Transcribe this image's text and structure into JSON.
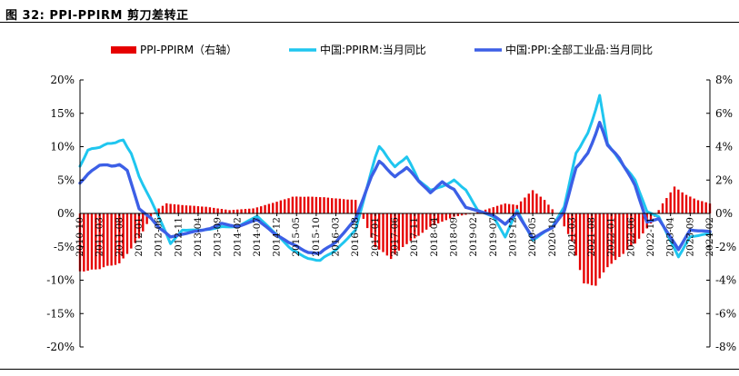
{
  "figure": {
    "title": "图 32: PPI-PPIRM 剪刀差转正"
  },
  "chart_data": {
    "type": "bar+line",
    "title": "图 32: PPI-PPIRM 剪刀差转正",
    "left_axis": {
      "ylim": [
        -20,
        20
      ],
      "ticks": [
        "20%",
        "15%",
        "10%",
        "5%",
        "0%",
        "-5%",
        "-10%",
        "-15%",
        "-20%"
      ]
    },
    "right_axis": {
      "ylim": [
        -8,
        8
      ],
      "ticks": [
        "8%",
        "6%",
        "4%",
        "2%",
        "0%",
        "-2%",
        "-4%",
        "-6%",
        "-8%"
      ]
    },
    "x_start": "2010-10",
    "x_end": "2024-02",
    "x_tick_labels": [
      "2010-10",
      "2011-03",
      "2011-08",
      "2012-01",
      "2012-06",
      "2012-11",
      "2013-04",
      "2013-09",
      "2014-02",
      "2014-07",
      "2014-12",
      "2015-05",
      "2015-10",
      "2016-03",
      "2016-08",
      "2017-01",
      "2017-06",
      "2017-11",
      "2018-04",
      "2018-09",
      "2019-02",
      "2019-07",
      "2019-12",
      "2020-05",
      "2020-10",
      "2021-03",
      "2021-08",
      "2022-01",
      "2022-06",
      "2022-11",
      "2023-04",
      "2023-09",
      "2024-02"
    ],
    "legend": {
      "position": "top"
    },
    "grid": false,
    "series": [
      {
        "name": "PPI-PPIRM（右轴）",
        "kind": "bar",
        "axis": "right",
        "color": "#e60000",
        "keyframes": [
          [
            "2010-10",
            -3.5
          ],
          [
            "2011-03",
            -3.3
          ],
          [
            "2011-08",
            -3.0
          ],
          [
            "2011-10",
            -2.4
          ],
          [
            "2012-01",
            -1.5
          ],
          [
            "2012-04",
            -0.2
          ],
          [
            "2012-06",
            0.3
          ],
          [
            "2012-08",
            0.6
          ],
          [
            "2012-12",
            0.5
          ],
          [
            "2013-06",
            0.4
          ],
          [
            "2013-12",
            0.2
          ],
          [
            "2014-06",
            0.3
          ],
          [
            "2014-12",
            0.7
          ],
          [
            "2015-04",
            1.0
          ],
          [
            "2015-10",
            1.0
          ],
          [
            "2016-03",
            0.9
          ],
          [
            "2016-08",
            0.8
          ],
          [
            "2017-01",
            -2.0
          ],
          [
            "2017-05",
            -2.7
          ],
          [
            "2017-08",
            -2.0
          ],
          [
            "2017-11",
            -1.5
          ],
          [
            "2018-03",
            -0.8
          ],
          [
            "2018-09",
            -0.2
          ],
          [
            "2019-02",
            0.0
          ],
          [
            "2019-06",
            0.3
          ],
          [
            "2019-10",
            0.6
          ],
          [
            "2020-01",
            0.5
          ],
          [
            "2020-05",
            1.4
          ],
          [
            "2020-08",
            0.8
          ],
          [
            "2020-12",
            -0.3
          ],
          [
            "2021-03",
            -1.7
          ],
          [
            "2021-06",
            -4.2
          ],
          [
            "2021-09",
            -4.3
          ],
          [
            "2021-12",
            -3.2
          ],
          [
            "2022-03",
            -2.6
          ],
          [
            "2022-07",
            -1.8
          ],
          [
            "2022-11",
            -0.6
          ],
          [
            "2023-02",
            0.6
          ],
          [
            "2023-05",
            1.6
          ],
          [
            "2023-08",
            1.1
          ],
          [
            "2023-11",
            0.8
          ],
          [
            "2024-02",
            0.6
          ]
        ]
      },
      {
        "name": "中国:PPIRM:当月同比",
        "kind": "line",
        "axis": "left",
        "color": "#1fc6ef",
        "keyframes": [
          [
            "2010-10",
            7.0
          ],
          [
            "2010-12",
            9.5
          ],
          [
            "2011-03",
            10.0
          ],
          [
            "2011-06",
            10.5
          ],
          [
            "2011-09",
            11.0
          ],
          [
            "2011-11",
            9.0
          ],
          [
            "2012-01",
            5.5
          ],
          [
            "2012-04",
            2.0
          ],
          [
            "2012-06",
            -0.5
          ],
          [
            "2012-09",
            -4.5
          ],
          [
            "2012-12",
            -2.5
          ],
          [
            "2013-04",
            -2.5
          ],
          [
            "2013-07",
            -2.4
          ],
          [
            "2013-10",
            -2.0
          ],
          [
            "2014-02",
            -2.0
          ],
          [
            "2014-07",
            -0.4
          ],
          [
            "2014-12",
            -3.2
          ],
          [
            "2015-04",
            -5.5
          ],
          [
            "2015-08",
            -6.8
          ],
          [
            "2015-11",
            -7.0
          ],
          [
            "2016-03",
            -5.5
          ],
          [
            "2016-08",
            -2.5
          ],
          [
            "2017-01",
            8.5
          ],
          [
            "2017-02",
            10.0
          ],
          [
            "2017-06",
            7.0
          ],
          [
            "2017-09",
            8.5
          ],
          [
            "2017-12",
            5.0
          ],
          [
            "2018-03",
            3.5
          ],
          [
            "2018-06",
            4.0
          ],
          [
            "2018-09",
            5.0
          ],
          [
            "2018-12",
            3.5
          ],
          [
            "2019-03",
            0.5
          ],
          [
            "2019-07",
            -0.5
          ],
          [
            "2019-10",
            -3.5
          ],
          [
            "2020-01",
            0.5
          ],
          [
            "2020-05",
            -4.0
          ],
          [
            "2020-10",
            -2.0
          ],
          [
            "2021-01",
            1.0
          ],
          [
            "2021-04",
            9.0
          ],
          [
            "2021-07",
            12.0
          ],
          [
            "2021-10",
            17.5
          ],
          [
            "2021-12",
            10.5
          ],
          [
            "2022-03",
            8.0
          ],
          [
            "2022-07",
            5.0
          ],
          [
            "2022-10",
            0.3
          ],
          [
            "2023-01",
            -0.5
          ],
          [
            "2023-06",
            -6.5
          ],
          [
            "2023-09",
            -3.5
          ],
          [
            "2024-02",
            -3.0
          ]
        ]
      },
      {
        "name": "中国:PPI:全部工业品:当月同比",
        "kind": "line",
        "axis": "left",
        "color": "#3c5fe6",
        "keyframes": [
          [
            "2010-10",
            4.5
          ],
          [
            "2010-12",
            5.9
          ],
          [
            "2011-03",
            7.3
          ],
          [
            "2011-06",
            7.1
          ],
          [
            "2011-08",
            7.3
          ],
          [
            "2011-10",
            6.5
          ],
          [
            "2012-01",
            0.7
          ],
          [
            "2012-04",
            -0.7
          ],
          [
            "2012-06",
            -2.1
          ],
          [
            "2012-09",
            -3.5
          ],
          [
            "2013-04",
            -2.6
          ],
          [
            "2013-07",
            -2.3
          ],
          [
            "2013-10",
            -1.5
          ],
          [
            "2014-02",
            -2.0
          ],
          [
            "2014-07",
            -0.9
          ],
          [
            "2014-12",
            -3.3
          ],
          [
            "2015-04",
            -4.6
          ],
          [
            "2015-08",
            -5.9
          ],
          [
            "2015-11",
            -5.9
          ],
          [
            "2016-03",
            -4.3
          ],
          [
            "2016-08",
            -0.8
          ],
          [
            "2016-12",
            5.5
          ],
          [
            "2017-02",
            7.8
          ],
          [
            "2017-06",
            5.5
          ],
          [
            "2017-09",
            6.9
          ],
          [
            "2017-12",
            4.9
          ],
          [
            "2018-03",
            3.1
          ],
          [
            "2018-06",
            4.7
          ],
          [
            "2018-09",
            3.6
          ],
          [
            "2018-12",
            0.9
          ],
          [
            "2019-03",
            0.4
          ],
          [
            "2019-07",
            -0.3
          ],
          [
            "2019-10",
            -1.6
          ],
          [
            "2020-01",
            0.1
          ],
          [
            "2020-05",
            -3.7
          ],
          [
            "2020-10",
            -2.1
          ],
          [
            "2021-01",
            0.3
          ],
          [
            "2021-04",
            6.8
          ],
          [
            "2021-07",
            9.0
          ],
          [
            "2021-10",
            13.5
          ],
          [
            "2021-12",
            10.3
          ],
          [
            "2022-03",
            8.3
          ],
          [
            "2022-07",
            4.2
          ],
          [
            "2022-10",
            -1.3
          ],
          [
            "2023-01",
            -0.8
          ],
          [
            "2023-06",
            -5.4
          ],
          [
            "2023-09",
            -2.5
          ],
          [
            "2024-02",
            -2.7
          ]
        ]
      }
    ]
  }
}
